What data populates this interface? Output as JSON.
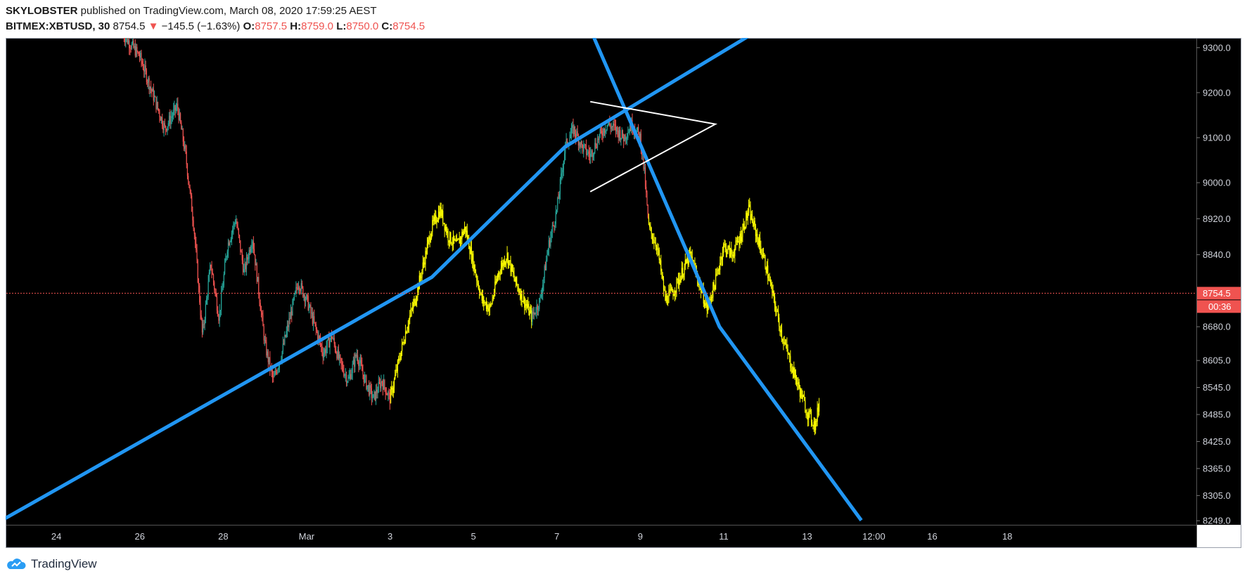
{
  "header": {
    "author": "SKYLOBSTER",
    "published_text": " published on TradingView.com, March 08, 2020 17:59:25 AEST",
    "symbol": "BITMEX:XBTUSD",
    "interval": ", 30",
    "last": "8754.5",
    "change_arrow": "▼",
    "change": "−145.5 (−1.63%)",
    "o_label": "O:",
    "o_value": "8757.5",
    "h_label": "H:",
    "h_value": "8759.0",
    "l_label": "L:",
    "l_value": "8750.0",
    "c_label": "C:",
    "c_value": "8754.5"
  },
  "footer": {
    "brand": "TradingView"
  },
  "colors": {
    "background": "#000000",
    "up_candle": "#26a69a",
    "down_candle": "#ef5350",
    "highlight": "#ffff00",
    "trendline": "#2196f3",
    "pattern": "#ffffff",
    "price_line": "#ef5350"
  },
  "chart_data": {
    "type": "candlestick",
    "price_axis_ticks": [
      "9300.0",
      "9200.0",
      "9100.0",
      "9000.0",
      "8920.0",
      "8840.0",
      "8754.5",
      "8680.0",
      "8605.0",
      "8545.0",
      "8485.0",
      "8425.0",
      "8365.0",
      "8305.0",
      "8249.0"
    ],
    "time_axis_ticks": [
      "24",
      "26",
      "28",
      "Mar",
      "3",
      "5",
      "7",
      "9",
      "11",
      "13",
      "12:00",
      "16",
      "18"
    ],
    "last_price": 8754.5,
    "last_price_label": "8754.5",
    "countdown": "00:36",
    "ylim": [
      8240,
      9320
    ],
    "price_path": [
      [
        25.6,
        9330
      ],
      [
        26.0,
        9280
      ],
      [
        26.3,
        9200
      ],
      [
        26.6,
        9120
      ],
      [
        26.9,
        9170
      ],
      [
        27.1,
        9060
      ],
      [
        27.3,
        8900
      ],
      [
        27.5,
        8660
      ],
      [
        27.7,
        8820
      ],
      [
        27.9,
        8700
      ],
      [
        28.1,
        8860
      ],
      [
        28.3,
        8920
      ],
      [
        28.5,
        8800
      ],
      [
        28.7,
        8880
      ],
      [
        28.9,
        8720
      ],
      [
        29.0,
        8640
      ],
      [
        29.2,
        8560
      ],
      [
        29.4,
        8620
      ],
      [
        29.6,
        8700
      ],
      [
        29.8,
        8780
      ],
      [
        30.0,
        8740
      ],
      [
        30.2,
        8680
      ],
      [
        30.4,
        8620
      ],
      [
        30.6,
        8660
      ],
      [
        30.8,
        8600
      ],
      [
        31.0,
        8560
      ],
      [
        31.2,
        8620
      ],
      [
        31.4,
        8560
      ],
      [
        31.6,
        8520
      ],
      [
        31.8,
        8560
      ],
      [
        32.0,
        8520
      ],
      [
        32.2,
        8600
      ],
      [
        32.4,
        8680
      ],
      [
        32.6,
        8740
      ],
      [
        32.8,
        8820
      ],
      [
        33.0,
        8900
      ],
      [
        33.2,
        8940
      ],
      [
        33.4,
        8880
      ],
      [
        33.6,
        8860
      ],
      [
        33.8,
        8900
      ],
      [
        34.0,
        8820
      ],
      [
        34.2,
        8740
      ],
      [
        34.4,
        8720
      ],
      [
        34.6,
        8800
      ],
      [
        34.8,
        8840
      ],
      [
        35.0,
        8780
      ],
      [
        35.2,
        8740
      ],
      [
        35.4,
        8700
      ],
      [
        35.6,
        8740
      ],
      [
        35.8,
        8860
      ],
      [
        36.0,
        8940
      ],
      [
        36.2,
        9080
      ],
      [
        36.4,
        9120
      ],
      [
        36.6,
        9080
      ],
      [
        36.8,
        9060
      ],
      [
        37.0,
        9100
      ],
      [
        37.2,
        9130
      ],
      [
        37.4,
        9120
      ],
      [
        37.6,
        9100
      ],
      [
        37.8,
        9130
      ],
      [
        38.0,
        9100
      ],
      [
        38.1,
        9020
      ],
      [
        38.2,
        8900
      ],
      [
        38.4,
        8860
      ],
      [
        38.6,
        8740
      ],
      [
        38.8,
        8760
      ],
      [
        39.0,
        8800
      ],
      [
        39.2,
        8840
      ],
      [
        39.4,
        8780
      ],
      [
        39.6,
        8720
      ],
      [
        39.8,
        8780
      ],
      [
        40.0,
        8860
      ],
      [
        40.2,
        8840
      ],
      [
        40.4,
        8880
      ],
      [
        40.6,
        8940
      ],
      [
        40.8,
        8880
      ],
      [
        41.0,
        8820
      ],
      [
        41.2,
        8740
      ],
      [
        41.4,
        8660
      ],
      [
        41.6,
        8600
      ],
      [
        41.8,
        8545
      ],
      [
        42.0,
        8490
      ],
      [
        42.2,
        8460
      ],
      [
        42.3,
        8520
      ]
    ],
    "highlight_ranges": [
      [
        32.0,
        35.4
      ],
      [
        38.2,
        42.3
      ]
    ],
    "trendlines": [
      {
        "name": "rising-trendline",
        "points": [
          [
            22.5,
            8240
          ],
          [
            33.0,
            8790
          ],
          [
            36.2,
            9080
          ],
          [
            43.0,
            9460
          ]
        ]
      },
      {
        "name": "falling-trendline",
        "points": [
          [
            35.4,
            9640
          ],
          [
            39.9,
            8680
          ],
          [
            43.3,
            8250
          ]
        ]
      }
    ],
    "pennant": {
      "apex": [
        39.8,
        9130
      ],
      "upper": [
        36.8,
        9180
      ],
      "lower": [
        36.8,
        8980
      ]
    }
  }
}
